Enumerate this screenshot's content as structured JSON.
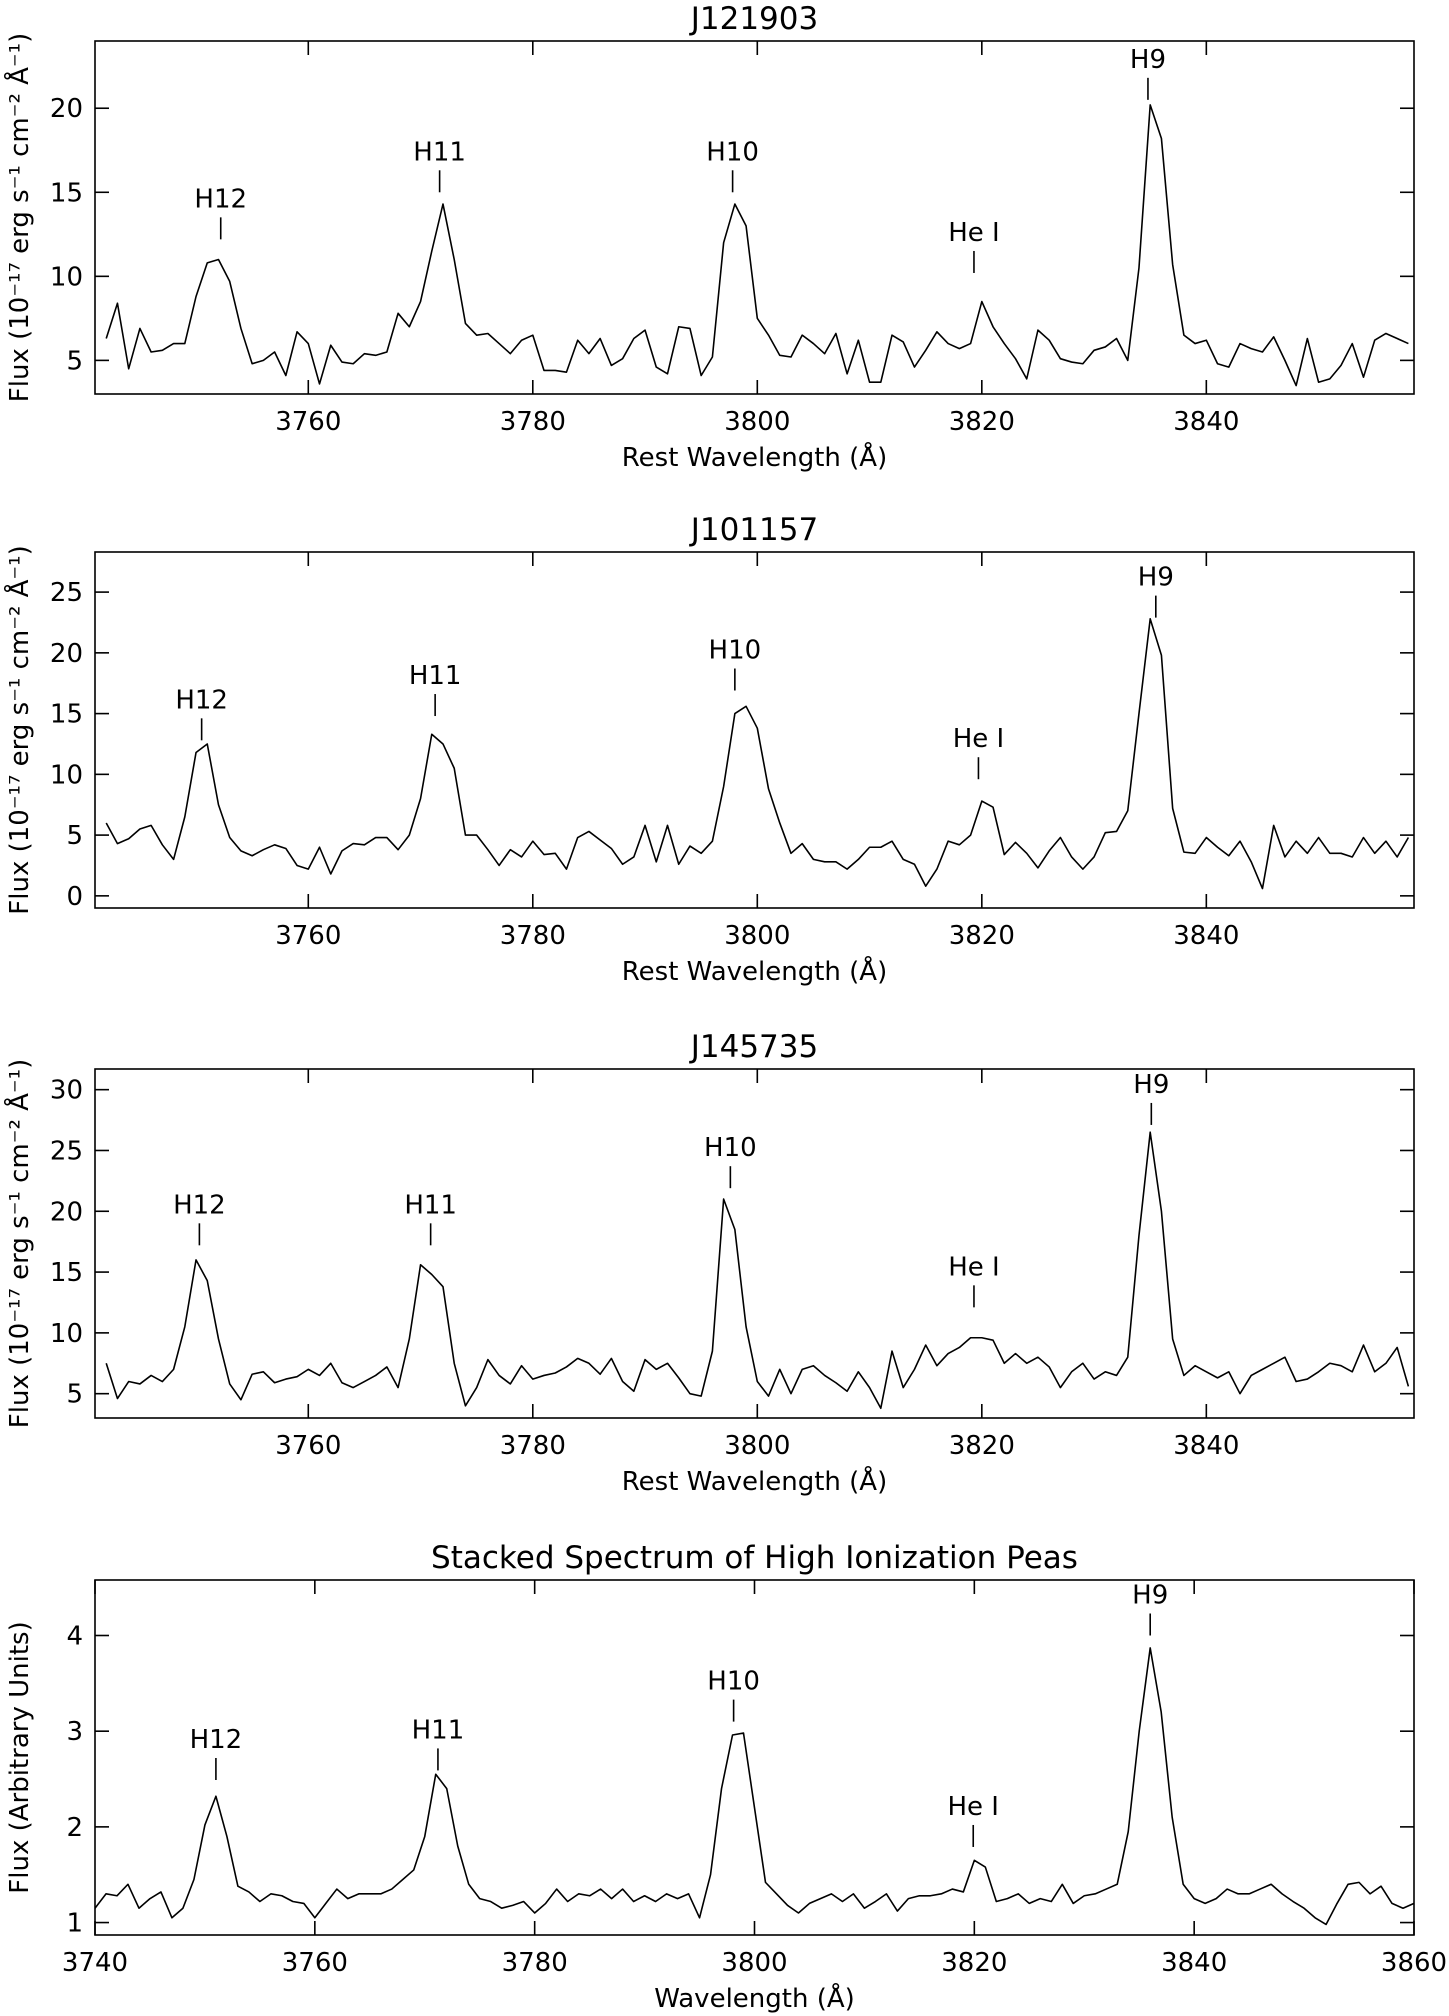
{
  "chart_data": [
    {
      "type": "line",
      "title": "J121903",
      "xlabel": "Rest Wavelength (Å)",
      "ylabel": "Flux (10⁻¹⁷ erg s⁻¹ cm⁻² Å⁻¹)",
      "color": "#000000",
      "xlim": [
        3741,
        3858.5
      ],
      "ylim": [
        3,
        24
      ],
      "xticks": [
        3760,
        3780,
        3800,
        3820,
        3840
      ],
      "yticks": [
        5,
        10,
        15,
        20
      ],
      "x": [
        3742,
        3743,
        3744,
        3745,
        3746,
        3747,
        3748,
        3749,
        3750,
        3751,
        3752,
        3753,
        3754,
        3755,
        3756,
        3757,
        3758,
        3759,
        3760,
        3761,
        3762,
        3763,
        3764,
        3765,
        3766,
        3767,
        3768,
        3769,
        3770,
        3771,
        3772,
        3773,
        3774,
        3775,
        3776,
        3777,
        3778,
        3779,
        3780,
        3781,
        3782,
        3783,
        3784,
        3785,
        3786,
        3787,
        3788,
        3789,
        3790,
        3791,
        3792,
        3793,
        3794,
        3795,
        3796,
        3797,
        3798,
        3799,
        3800,
        3801,
        3802,
        3803,
        3804,
        3805,
        3806,
        3807,
        3808,
        3809,
        3810,
        3811,
        3812,
        3813,
        3814,
        3815,
        3816,
        3817,
        3818,
        3819,
        3820,
        3821,
        3822,
        3823,
        3824,
        3825,
        3826,
        3827,
        3828,
        3829,
        3830,
        3831,
        3832,
        3833,
        3834,
        3835,
        3836,
        3837,
        3838,
        3839,
        3840,
        3841,
        3842,
        3843,
        3844,
        3845,
        3846,
        3847,
        3848,
        3849,
        3850,
        3851,
        3852,
        3853,
        3854,
        3855,
        3856,
        3857,
        3858
      ],
      "values": [
        6.3,
        8.4,
        4.5,
        6.9,
        5.5,
        5.6,
        6.0,
        6.0,
        8.8,
        10.8,
        11.0,
        9.7,
        6.9,
        4.8,
        5.0,
        5.5,
        4.1,
        6.7,
        6.0,
        3.6,
        5.9,
        4.9,
        4.8,
        5.4,
        5.3,
        5.5,
        7.8,
        7.0,
        8.5,
        11.5,
        14.3,
        11.0,
        7.2,
        6.5,
        6.6,
        6.0,
        5.4,
        6.2,
        6.5,
        4.4,
        4.4,
        4.3,
        6.2,
        5.4,
        6.3,
        4.7,
        5.1,
        6.3,
        6.8,
        4.6,
        4.2,
        7.0,
        6.9,
        4.1,
        5.2,
        12.0,
        14.3,
        13.0,
        7.5,
        6.5,
        5.3,
        5.2,
        6.5,
        6.0,
        5.4,
        6.6,
        4.2,
        6.2,
        3.7,
        3.7,
        6.5,
        6.1,
        4.6,
        5.6,
        6.7,
        6.0,
        5.7,
        6.0,
        8.5,
        7.0,
        6.0,
        5.1,
        3.9,
        6.8,
        6.2,
        5.1,
        4.9,
        4.8,
        5.6,
        5.8,
        6.3,
        5.0,
        10.5,
        20.2,
        18.2,
        10.7,
        6.5,
        6.0,
        6.2,
        4.8,
        4.6,
        6.0,
        5.7,
        5.5,
        6.4,
        5.0,
        3.5,
        6.3,
        3.7,
        3.9,
        4.7,
        6.0,
        4.0,
        6.2,
        6.6,
        6.3,
        6.0
      ],
      "annotations": [
        {
          "text": "H12",
          "x": 3752.2,
          "y": 12.2
        },
        {
          "text": "H11",
          "x": 3771.7,
          "y": 15
        },
        {
          "text": "H10",
          "x": 3797.8,
          "y": 15
        },
        {
          "text": "He I",
          "x": 3819.3,
          "y": 10.2
        },
        {
          "text": "H9",
          "x": 3834.8,
          "y": 20.5
        }
      ]
    },
    {
      "type": "line",
      "title": "J101157",
      "xlabel": "Rest Wavelength (Å)",
      "ylabel": "Flux (10⁻¹⁷ erg s⁻¹ cm⁻² Å⁻¹)",
      "color": "#000000",
      "xlim": [
        3741,
        3858.5
      ],
      "ylim": [
        -1,
        28.3
      ],
      "xticks": [
        3760,
        3780,
        3800,
        3820,
        3840
      ],
      "yticks": [
        0,
        5,
        10,
        15,
        20,
        25
      ],
      "x": [
        3742,
        3743,
        3744,
        3745,
        3746,
        3747,
        3748,
        3749,
        3750,
        3751,
        3752,
        3753,
        3754,
        3755,
        3756,
        3757,
        3758,
        3759,
        3760,
        3761,
        3762,
        3763,
        3764,
        3765,
        3766,
        3767,
        3768,
        3769,
        3770,
        3771,
        3772,
        3773,
        3774,
        3775,
        3776,
        3777,
        3778,
        3779,
        3780,
        3781,
        3782,
        3783,
        3784,
        3785,
        3786,
        3787,
        3788,
        3789,
        3790,
        3791,
        3792,
        3793,
        3794,
        3795,
        3796,
        3797,
        3798,
        3799,
        3800,
        3801,
        3802,
        3803,
        3804,
        3805,
        3806,
        3807,
        3808,
        3809,
        3810,
        3811,
        3812,
        3813,
        3814,
        3815,
        3816,
        3817,
        3818,
        3819,
        3820,
        3821,
        3822,
        3823,
        3824,
        3825,
        3826,
        3827,
        3828,
        3829,
        3830,
        3831,
        3832,
        3833,
        3834,
        3835,
        3836,
        3837,
        3838,
        3839,
        3840,
        3841,
        3842,
        3843,
        3844,
        3845,
        3846,
        3847,
        3848,
        3849,
        3850,
        3851,
        3852,
        3853,
        3854,
        3855,
        3856,
        3857,
        3858
      ],
      "values": [
        6.0,
        4.3,
        4.7,
        5.5,
        5.8,
        4.2,
        3.0,
        6.5,
        11.8,
        12.5,
        7.5,
        4.8,
        3.7,
        3.3,
        3.8,
        4.2,
        3.9,
        2.5,
        2.2,
        4.0,
        1.8,
        3.7,
        4.3,
        4.2,
        4.8,
        4.8,
        3.8,
        5.0,
        8.0,
        13.3,
        12.5,
        10.5,
        5.0,
        5.0,
        3.8,
        2.5,
        3.8,
        3.2,
        4.5,
        3.4,
        3.5,
        2.2,
        4.8,
        5.3,
        4.6,
        3.9,
        2.6,
        3.2,
        5.8,
        2.8,
        5.8,
        2.6,
        4.1,
        3.5,
        4.5,
        9.0,
        15.0,
        15.6,
        13.8,
        8.8,
        6.0,
        3.5,
        4.3,
        3.0,
        2.8,
        2.8,
        2.2,
        3.0,
        4.0,
        4.0,
        4.5,
        3.0,
        2.6,
        0.8,
        2.2,
        4.5,
        4.2,
        5.0,
        7.8,
        7.3,
        3.4,
        4.4,
        3.5,
        2.3,
        3.7,
        4.8,
        3.2,
        2.2,
        3.2,
        5.2,
        5.3,
        7.0,
        15.0,
        22.8,
        19.8,
        7.2,
        3.6,
        3.5,
        4.8,
        4.0,
        3.3,
        4.5,
        2.8,
        0.6,
        5.8,
        3.2,
        4.5,
        3.5,
        4.8,
        3.5,
        3.5,
        3.2,
        4.8,
        3.5,
        4.5,
        3.2,
        4.8
      ],
      "annotations": [
        {
          "text": "H12",
          "x": 3750.5,
          "y": 12.8
        },
        {
          "text": "H11",
          "x": 3771.3,
          "y": 14.8
        },
        {
          "text": "H10",
          "x": 3798.0,
          "y": 16.9
        },
        {
          "text": "He I",
          "x": 3819.7,
          "y": 9.6
        },
        {
          "text": "H9",
          "x": 3835.5,
          "y": 22.9
        }
      ]
    },
    {
      "type": "line",
      "title": "J145735",
      "xlabel": "Rest Wavelength (Å)",
      "ylabel": "Flux (10⁻¹⁷ erg s⁻¹ cm⁻² Å⁻¹)",
      "color": "#000000",
      "xlim": [
        3741,
        3858.5
      ],
      "ylim": [
        3,
        31.7
      ],
      "xticks": [
        3760,
        3780,
        3800,
        3820,
        3840
      ],
      "yticks": [
        5,
        10,
        15,
        20,
        25,
        30
      ],
      "x": [
        3742,
        3743,
        3744,
        3745,
        3746,
        3747,
        3748,
        3749,
        3750,
        3751,
        3752,
        3753,
        3754,
        3755,
        3756,
        3757,
        3758,
        3759,
        3760,
        3761,
        3762,
        3763,
        3764,
        3765,
        3766,
        3767,
        3768,
        3769,
        3770,
        3771,
        3772,
        3773,
        3774,
        3775,
        3776,
        3777,
        3778,
        3779,
        3780,
        3781,
        3782,
        3783,
        3784,
        3785,
        3786,
        3787,
        3788,
        3789,
        3790,
        3791,
        3792,
        3793,
        3794,
        3795,
        3796,
        3797,
        3798,
        3799,
        3800,
        3801,
        3802,
        3803,
        3804,
        3805,
        3806,
        3807,
        3808,
        3809,
        3810,
        3811,
        3812,
        3813,
        3814,
        3815,
        3816,
        3817,
        3818,
        3819,
        3820,
        3821,
        3822,
        3823,
        3824,
        3825,
        3826,
        3827,
        3828,
        3829,
        3830,
        3831,
        3832,
        3833,
        3834,
        3835,
        3836,
        3837,
        3838,
        3839,
        3840,
        3841,
        3842,
        3843,
        3844,
        3845,
        3846,
        3847,
        3848,
        3849,
        3850,
        3851,
        3852,
        3853,
        3854,
        3855,
        3856,
        3857,
        3858
      ],
      "values": [
        7.5,
        4.6,
        6.0,
        5.8,
        6.5,
        6.0,
        7.0,
        10.5,
        16.0,
        14.3,
        9.5,
        5.8,
        4.5,
        6.6,
        6.8,
        5.9,
        6.2,
        6.4,
        7.0,
        6.5,
        7.5,
        5.9,
        5.5,
        6.0,
        6.5,
        7.2,
        5.5,
        9.5,
        15.6,
        14.8,
        13.8,
        7.5,
        4.0,
        5.5,
        7.8,
        6.5,
        5.8,
        7.3,
        6.2,
        6.5,
        6.7,
        7.2,
        7.9,
        7.5,
        6.6,
        7.9,
        6.0,
        5.2,
        7.8,
        7.0,
        7.5,
        6.3,
        5.0,
        4.8,
        8.5,
        21.0,
        18.5,
        10.5,
        6.0,
        4.8,
        7.0,
        5.0,
        7.0,
        7.3,
        6.5,
        5.9,
        5.2,
        6.8,
        5.5,
        3.8,
        8.5,
        5.5,
        7.0,
        9.0,
        7.3,
        8.3,
        8.8,
        9.6,
        9.6,
        9.4,
        7.5,
        8.3,
        7.5,
        8.0,
        7.2,
        5.5,
        6.8,
        7.5,
        6.2,
        6.8,
        6.5,
        8.0,
        18.0,
        26.5,
        20.0,
        9.5,
        6.5,
        7.3,
        6.8,
        6.3,
        6.8,
        5.0,
        6.5,
        7.0,
        7.5,
        8.0,
        6.0,
        6.2,
        6.8,
        7.5,
        7.3,
        6.8,
        9.0,
        6.8,
        7.5,
        8.8,
        5.6
      ],
      "annotations": [
        {
          "text": "H12",
          "x": 3750.3,
          "y": 17.2
        },
        {
          "text": "H11",
          "x": 3770.9,
          "y": 17.2
        },
        {
          "text": "H10",
          "x": 3797.6,
          "y": 21.9
        },
        {
          "text": "He I",
          "x": 3819.3,
          "y": 12.1
        },
        {
          "text": "H9",
          "x": 3835.1,
          "y": 27.1
        }
      ]
    },
    {
      "type": "line",
      "title": "Stacked Spectrum of High Ionization Peas",
      "xlabel": "Wavelength (Å)",
      "ylabel": "Flux (Arbitrary Units)",
      "color": "#000000",
      "xlim": [
        3740,
        3860
      ],
      "ylim": [
        0.87,
        4.58
      ],
      "xticks": [
        3740,
        3760,
        3780,
        3800,
        3820,
        3840,
        3860
      ],
      "yticks": [
        1,
        2,
        3,
        4
      ],
      "x": [
        3740,
        3741,
        3742,
        3743,
        3744,
        3745,
        3746,
        3747,
        3748,
        3749,
        3750,
        3751,
        3752,
        3753,
        3754,
        3755,
        3756,
        3757,
        3758,
        3759,
        3760,
        3761,
        3762,
        3763,
        3764,
        3765,
        3766,
        3767,
        3768,
        3769,
        3770,
        3771,
        3772,
        3773,
        3774,
        3775,
        3776,
        3777,
        3778,
        3779,
        3780,
        3781,
        3782,
        3783,
        3784,
        3785,
        3786,
        3787,
        3788,
        3789,
        3790,
        3791,
        3792,
        3793,
        3794,
        3795,
        3796,
        3797,
        3798,
        3799,
        3800,
        3801,
        3802,
        3803,
        3804,
        3805,
        3806,
        3807,
        3808,
        3809,
        3810,
        3811,
        3812,
        3813,
        3814,
        3815,
        3816,
        3817,
        3818,
        3819,
        3820,
        3821,
        3822,
        3823,
        3824,
        3825,
        3826,
        3827,
        3828,
        3829,
        3830,
        3831,
        3832,
        3833,
        3834,
        3835,
        3836,
        3837,
        3838,
        3839,
        3840,
        3841,
        3842,
        3843,
        3844,
        3845,
        3846,
        3847,
        3848,
        3849,
        3850,
        3851,
        3852,
        3853,
        3854,
        3855,
        3856,
        3857,
        3858,
        3859,
        3860
      ],
      "values": [
        1.15,
        1.3,
        1.28,
        1.4,
        1.15,
        1.25,
        1.32,
        1.05,
        1.15,
        1.45,
        2.02,
        2.32,
        1.9,
        1.38,
        1.32,
        1.22,
        1.3,
        1.28,
        1.22,
        1.2,
        1.05,
        1.2,
        1.35,
        1.25,
        1.3,
        1.3,
        1.3,
        1.35,
        1.45,
        1.55,
        1.9,
        2.55,
        2.4,
        1.8,
        1.4,
        1.25,
        1.22,
        1.15,
        1.18,
        1.22,
        1.1,
        1.2,
        1.35,
        1.22,
        1.3,
        1.28,
        1.35,
        1.25,
        1.35,
        1.22,
        1.28,
        1.22,
        1.3,
        1.25,
        1.3,
        1.05,
        1.5,
        2.4,
        2.96,
        2.98,
        2.2,
        1.42,
        1.3,
        1.18,
        1.1,
        1.2,
        1.25,
        1.3,
        1.22,
        1.3,
        1.15,
        1.22,
        1.3,
        1.12,
        1.25,
        1.28,
        1.28,
        1.3,
        1.35,
        1.32,
        1.65,
        1.58,
        1.22,
        1.25,
        1.3,
        1.2,
        1.25,
        1.22,
        1.4,
        1.2,
        1.28,
        1.3,
        1.35,
        1.4,
        1.95,
        3.0,
        3.87,
        3.2,
        2.1,
        1.4,
        1.25,
        1.2,
        1.25,
        1.35,
        1.3,
        1.3,
        1.35,
        1.4,
        1.3,
        1.22,
        1.15,
        1.05,
        0.98,
        1.2,
        1.4,
        1.42,
        1.3,
        1.38,
        1.2,
        1.15,
        1.2
      ],
      "annotations": [
        {
          "text": "H12",
          "x": 3751.0,
          "y": 2.49
        },
        {
          "text": "H11",
          "x": 3771.2,
          "y": 2.59
        },
        {
          "text": "H10",
          "x": 3798.1,
          "y": 3.1
        },
        {
          "text": "He I",
          "x": 3819.9,
          "y": 1.79
        },
        {
          "text": "H9",
          "x": 3836.0,
          "y": 4.0
        }
      ]
    }
  ]
}
